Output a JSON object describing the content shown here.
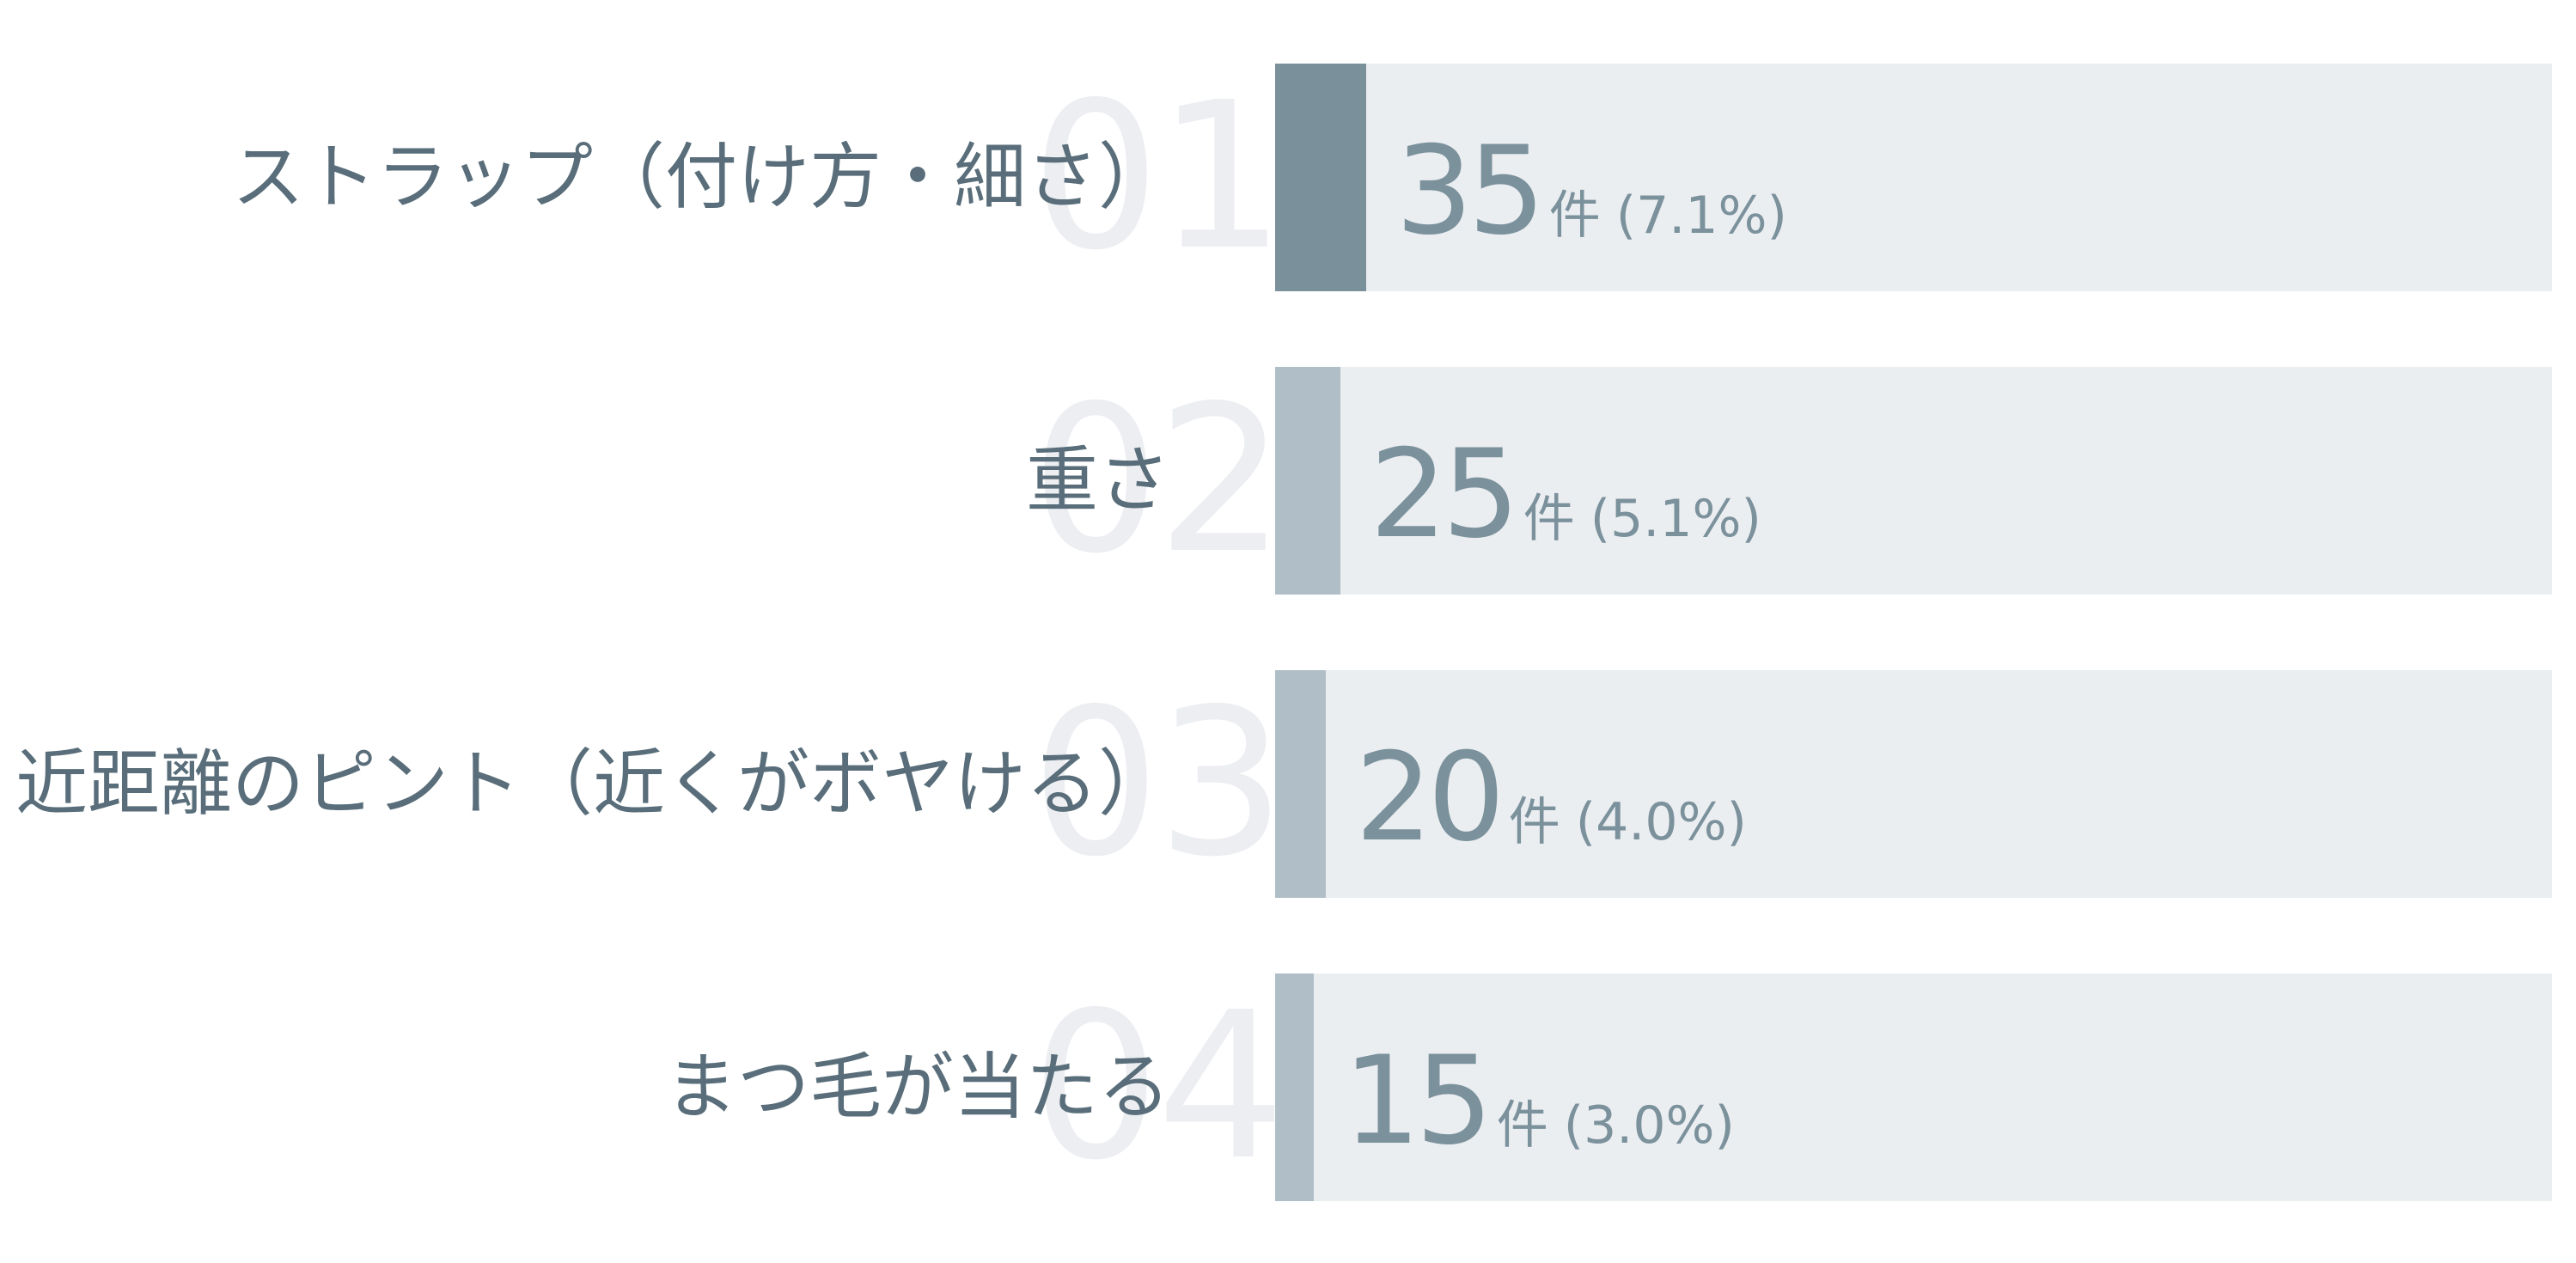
{
  "chart_data": {
    "type": "bar",
    "orientation": "horizontal",
    "categories": [
      "ストラップ（付け方・細さ）",
      "重さ",
      "近距離のピント（近くがボヤける）",
      "まつ毛が当たる"
    ],
    "ranks": [
      "01",
      "02",
      "03",
      "04"
    ],
    "values": [
      35,
      25,
      20,
      15
    ],
    "value_units": [
      "件",
      "件",
      "件",
      "件"
    ],
    "percent_labels": [
      "(7.1%)",
      "(5.1%)",
      "(4.0%)",
      "(3.0%)"
    ],
    "percent_values": [
      7.1,
      5.1,
      4.0,
      3.0
    ],
    "xlim": [
      0,
      100
    ],
    "title": "",
    "xlabel": "",
    "ylabel": "",
    "grid": false,
    "legend": "none",
    "colors": {
      "top_bar": "#7a909b",
      "other_bars": "#b0bfc7",
      "track": "#ebeef1",
      "label_text": "#596e7a",
      "value_text": "#7b919c",
      "rank_text": "#eceef1"
    }
  }
}
